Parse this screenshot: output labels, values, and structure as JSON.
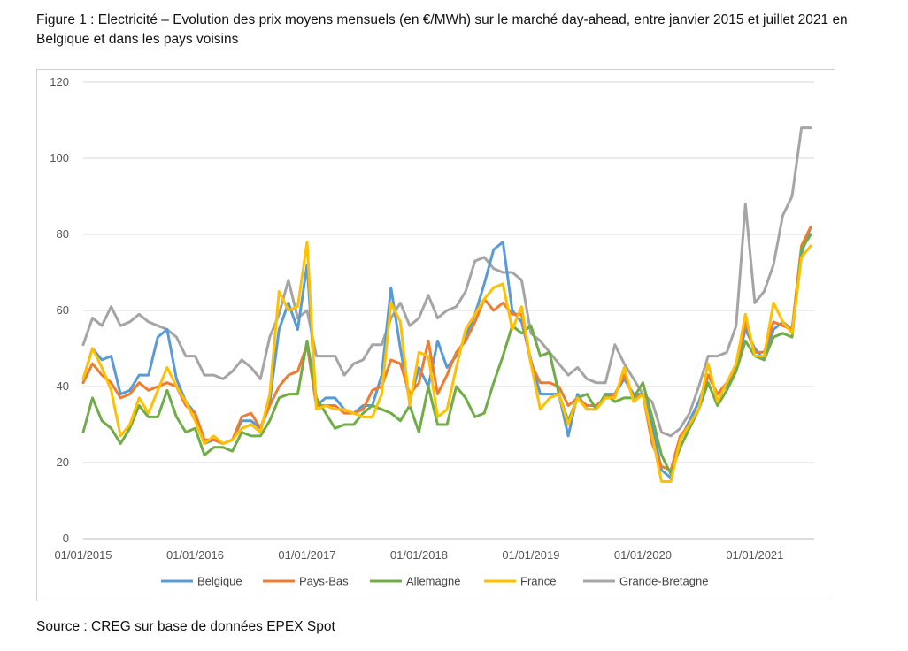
{
  "figure": {
    "caption": "Figure 1 : Electricité – Evolution des prix moyens mensuels (en €/MWh) sur le marché day-ahead, entre janvier 2015 et juillet 2021 en Belgique et dans les pays voisins",
    "source": "Source : CREG sur base de données EPEX Spot"
  },
  "chart_data": {
    "type": "line",
    "title": "",
    "xlabel": "",
    "ylabel": "",
    "ylim": [
      0,
      120
    ],
    "yticks": [
      0,
      20,
      40,
      60,
      80,
      100,
      120
    ],
    "grid": "horizontal",
    "legend_position": "bottom",
    "x": [
      "2015-01",
      "2015-02",
      "2015-03",
      "2015-04",
      "2015-05",
      "2015-06",
      "2015-07",
      "2015-08",
      "2015-09",
      "2015-10",
      "2015-11",
      "2015-12",
      "2016-01",
      "2016-02",
      "2016-03",
      "2016-04",
      "2016-05",
      "2016-06",
      "2016-07",
      "2016-08",
      "2016-09",
      "2016-10",
      "2016-11",
      "2016-12",
      "2017-01",
      "2017-02",
      "2017-03",
      "2017-04",
      "2017-05",
      "2017-06",
      "2017-07",
      "2017-08",
      "2017-09",
      "2017-10",
      "2017-11",
      "2017-12",
      "2018-01",
      "2018-02",
      "2018-03",
      "2018-04",
      "2018-05",
      "2018-06",
      "2018-07",
      "2018-08",
      "2018-09",
      "2018-10",
      "2018-11",
      "2018-12",
      "2019-01",
      "2019-02",
      "2019-03",
      "2019-04",
      "2019-05",
      "2019-06",
      "2019-07",
      "2019-08",
      "2019-09",
      "2019-10",
      "2019-11",
      "2019-12",
      "2020-01",
      "2020-02",
      "2020-03",
      "2020-04",
      "2020-05",
      "2020-06",
      "2020-07",
      "2020-08",
      "2020-09",
      "2020-10",
      "2020-11",
      "2020-12",
      "2021-01",
      "2021-02",
      "2021-03",
      "2021-04",
      "2021-05",
      "2021-06",
      "2021-07"
    ],
    "x_tick_labels": [
      "01/01/2015",
      "01/01/2016",
      "01/01/2017",
      "01/01/2018",
      "01/01/2019",
      "01/01/2020",
      "01/01/2021"
    ],
    "series": [
      {
        "name": "Belgique",
        "color": "#5b9bd5",
        "values": [
          42,
          50,
          47,
          48,
          38,
          39,
          43,
          43,
          53,
          55,
          42,
          36,
          33,
          25,
          26,
          25,
          26,
          31,
          31,
          29,
          36,
          55,
          62,
          55,
          72,
          35,
          37,
          37,
          34,
          33,
          35,
          35,
          43,
          66,
          50,
          36,
          45,
          40,
          52,
          45,
          48,
          53,
          59,
          67,
          76,
          78,
          60,
          57,
          47,
          38,
          38,
          38,
          27,
          38,
          34,
          34,
          38,
          38,
          42,
          38,
          38,
          30,
          18,
          16,
          26,
          31,
          36,
          43,
          38,
          40,
          45,
          55,
          50,
          47,
          55,
          57,
          55,
          75,
          82
        ]
      },
      {
        "name": "Pays-Bas",
        "color": "#ed7d31",
        "values": [
          41,
          46,
          43,
          41,
          37,
          38,
          41,
          39,
          40,
          41,
          40,
          35,
          33,
          26,
          26,
          25,
          26,
          32,
          33,
          29,
          35,
          40,
          43,
          44,
          51,
          35,
          35,
          35,
          33,
          33,
          34,
          39,
          40,
          47,
          46,
          38,
          41,
          52,
          38,
          43,
          49,
          52,
          57,
          63,
          60,
          62,
          59,
          59,
          46,
          41,
          41,
          40,
          35,
          37,
          35,
          35,
          37,
          38,
          43,
          37,
          38,
          25,
          19,
          18,
          27,
          30,
          34,
          43,
          38,
          41,
          45,
          57,
          49,
          49,
          57,
          56,
          55,
          77,
          82
        ]
      },
      {
        "name": "Allemagne",
        "color": "#70ad47",
        "values": [
          28,
          37,
          31,
          29,
          25,
          29,
          35,
          32,
          32,
          39,
          32,
          28,
          29,
          22,
          24,
          24,
          23,
          28,
          27,
          27,
          31,
          37,
          38,
          38,
          52,
          37,
          33,
          29,
          30,
          30,
          33,
          35,
          34,
          33,
          31,
          35,
          28,
          40,
          30,
          30,
          40,
          37,
          32,
          33,
          41,
          48,
          56,
          54,
          56,
          48,
          49,
          38,
          31,
          37,
          38,
          34,
          38,
          36,
          37,
          37,
          41,
          32,
          22,
          17,
          24,
          29,
          34,
          41,
          35,
          39,
          44,
          52,
          48,
          47,
          53,
          54,
          53,
          76,
          80
        ]
      },
      {
        "name": "France",
        "color": "#ffc000",
        "values": [
          42,
          50,
          45,
          39,
          27,
          30,
          37,
          33,
          39,
          45,
          40,
          36,
          31,
          25,
          27,
          25,
          26,
          29,
          30,
          28,
          38,
          65,
          60,
          61,
          78,
          34,
          35,
          34,
          34,
          33,
          32,
          32,
          38,
          62,
          57,
          35,
          49,
          48,
          32,
          34,
          45,
          55,
          59,
          63,
          66,
          67,
          55,
          61,
          46,
          34,
          37,
          38,
          30,
          37,
          34,
          34,
          37,
          37,
          45,
          36,
          38,
          27,
          15,
          15,
          26,
          30,
          34,
          46,
          36,
          41,
          46,
          59,
          48,
          48,
          62,
          57,
          54,
          74,
          77
        ]
      },
      {
        "name": "Grande-Bretagne",
        "color": "#a5a5a5",
        "values": [
          51,
          58,
          56,
          61,
          56,
          57,
          59,
          57,
          56,
          55,
          53,
          48,
          48,
          43,
          43,
          42,
          44,
          47,
          45,
          42,
          53,
          59,
          68,
          58,
          60,
          48,
          48,
          48,
          43,
          46,
          47,
          51,
          51,
          58,
          62,
          56,
          58,
          64,
          58,
          60,
          61,
          65,
          73,
          74,
          71,
          70,
          70,
          68,
          54,
          52,
          49,
          46,
          43,
          45,
          42,
          41,
          41,
          51,
          46,
          42,
          38,
          36,
          28,
          27,
          29,
          33,
          40,
          48,
          48,
          49,
          56,
          88,
          62,
          65,
          72,
          85,
          90,
          108,
          108
        ]
      }
    ]
  }
}
